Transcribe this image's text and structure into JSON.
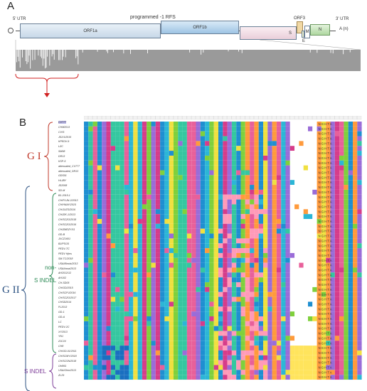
{
  "panel_a": {
    "label": "A",
    "utr5": "5' UTR",
    "rfs": "programmed -1 RFS",
    "orf3": "ORF3",
    "utr3": "3' UTR",
    "polya": "A (n)",
    "segments": {
      "orf1a": "ORF1a",
      "orf1b": "ORF1b",
      "s": "S",
      "m": "M",
      "n": "N",
      "e": "E"
    }
  },
  "panel_b": {
    "label": "B",
    "g1": "G I",
    "g2": "G II",
    "non_indel": "non-\nS INDEL",
    "s_indel": "S INDEL",
    "strains": [
      "CV777",
      "CHM2013",
      "CV/S",
      "JS2/1/2015",
      "KPEDV-9",
      "LZC",
      "SM98",
      "DR13",
      "KSP-5",
      "attenuated_CV777",
      "attenuated_DR13",
      "GDS01",
      "HLJBY",
      "JS2008",
      "SD-M",
      "B1-2015-1",
      "CH/FUJN-2/2013",
      "CH/HNAY/2015",
      "CH/JXZS/2016",
      "CH/ZIK-1/2013",
      "CH/SCZG/2018",
      "CH/SCZG/2016",
      "CH/ZMDZY/11",
      "GD-B",
      "JXCZ1601",
      "BJ/PS/15",
      "PEDV-TC",
      "PEDV Hjms",
      "SM-TC/2018",
      "USA/Illinois/2013",
      "USA/Iowa/2013",
      "AH2012/12",
      "AH102",
      "CH-SD05",
      "CH/GD/2015",
      "CH/SCPJ/2016",
      "CH/SCZG/2017",
      "CHSD2014",
      "FL2013",
      "GD-1",
      "GD-A",
      "LC",
      "PEDV-2C",
      "XY2013",
      "YN1",
      "ZJC24",
      "CH8",
      "CH/GD-01/2011",
      "CH/SCMY/2018",
      "CH/SCSN/2018",
      "OH851",
      "USA/Ohio/2013",
      "ZL29"
    ],
    "consensus_tail": "N G H T A"
  }
}
